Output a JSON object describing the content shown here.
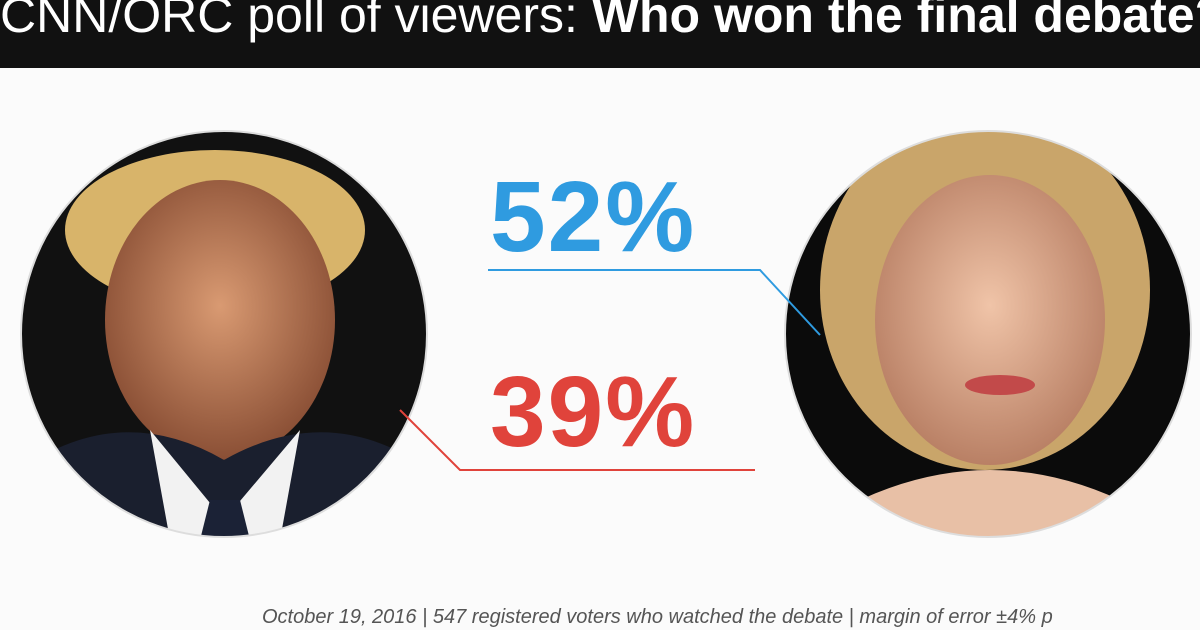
{
  "header": {
    "title_lead": "CNN/ORC poll of viewers:",
    "title_question": "Who won the final debate?"
  },
  "results": [
    {
      "label": "52%"
    },
    {
      "label": "39%"
    }
  ],
  "footer": "October 19, 2016 | 547 registered voters who watched the debate | margin of error ±4% p"
}
